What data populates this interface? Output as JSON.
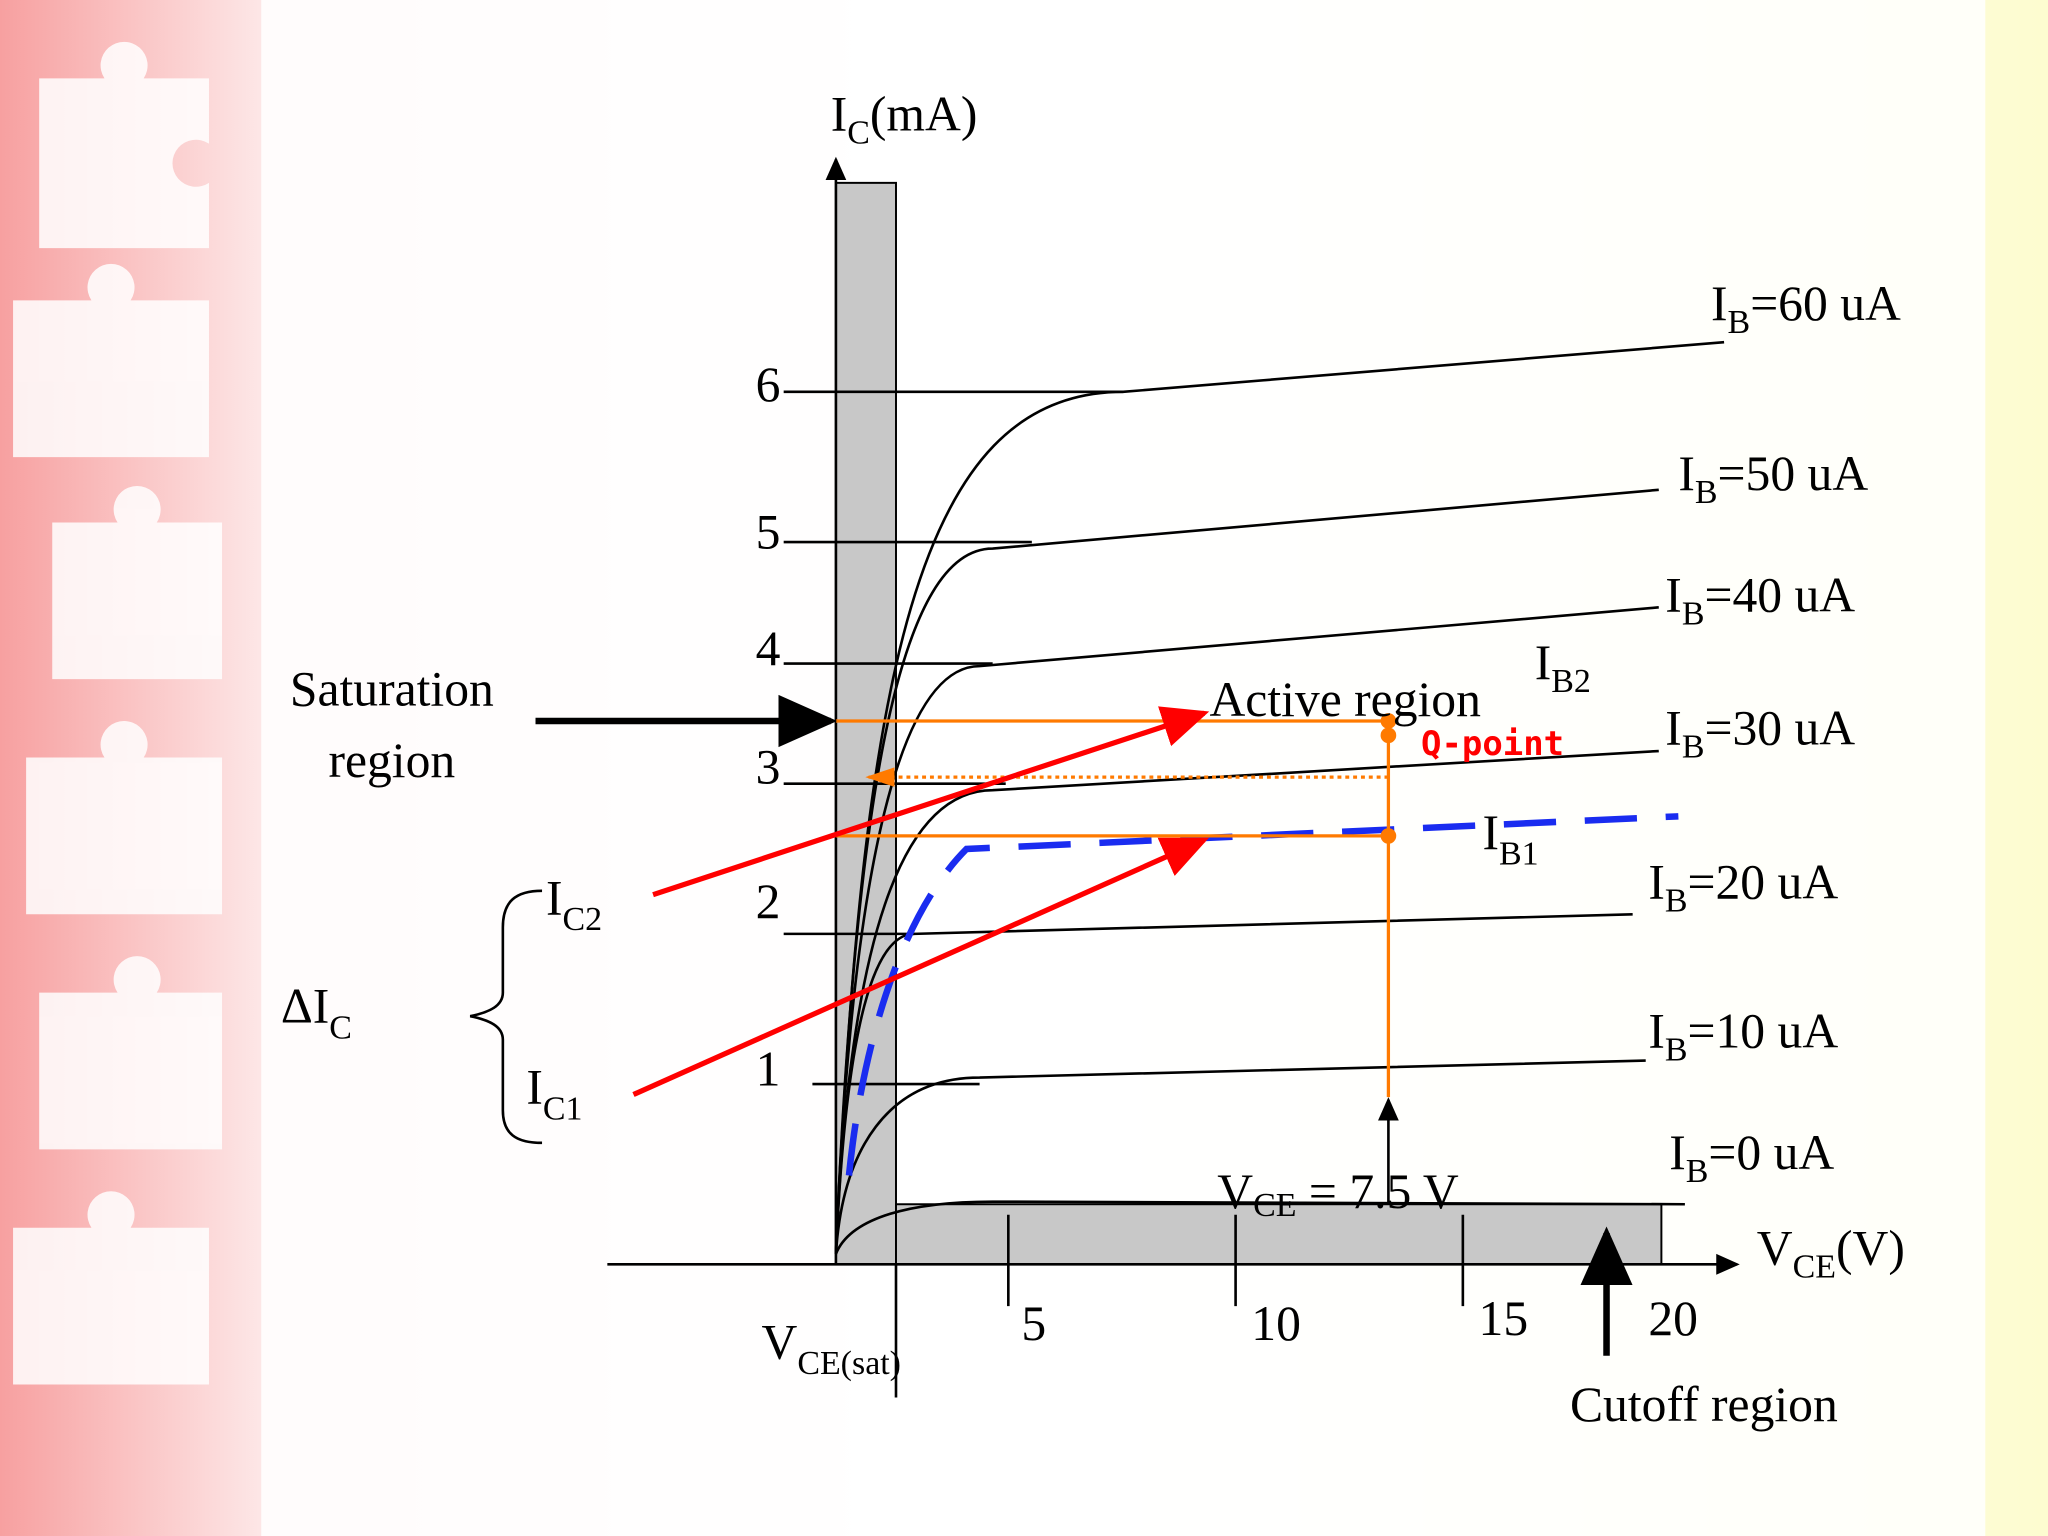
{
  "y_axis": {
    "main": "I",
    "sub": "C",
    "unit": "(mA)"
  },
  "x_axis": {
    "main": "V",
    "sub": "CE",
    "unit": "(V)"
  },
  "y_ticks": [
    "1",
    "2",
    "3",
    "4",
    "5",
    "6"
  ],
  "x_ticks": [
    "5",
    "10",
    "15",
    "20"
  ],
  "curves": [
    {
      "main": "I",
      "sub": "B",
      "rest": "=60 uA"
    },
    {
      "main": "I",
      "sub": "B",
      "rest": "=50 uA"
    },
    {
      "main": "I",
      "sub": "B",
      "rest": "=40 uA"
    },
    {
      "main": "I",
      "sub": "B",
      "rest": "=30 uA"
    },
    {
      "main": "I",
      "sub": "B",
      "rest": "=20 uA"
    },
    {
      "main": "I",
      "sub": "B",
      "rest": "=10 uA"
    },
    {
      "main": "I",
      "sub": "B",
      "rest": "=0 uA"
    }
  ],
  "labels": {
    "saturation": [
      "Saturation",
      "region"
    ],
    "active": "Active region",
    "q_point": "Q-point",
    "ib2": {
      "main": "I",
      "sub": "B2"
    },
    "ib1": {
      "main": "I",
      "sub": "B1"
    },
    "ic2": {
      "main": "I",
      "sub": "C2"
    },
    "ic1": {
      "main": "I",
      "sub": "C1"
    },
    "delta_ic": {
      "main": "ΔI",
      "sub": "C"
    },
    "vce_sat": {
      "main": "V",
      "sub": "CE(sat)"
    },
    "vce_q": {
      "main": "V",
      "sub": "CE",
      "rest": " = 7.5 V"
    },
    "cutoff": "Cutoff region"
  }
}
